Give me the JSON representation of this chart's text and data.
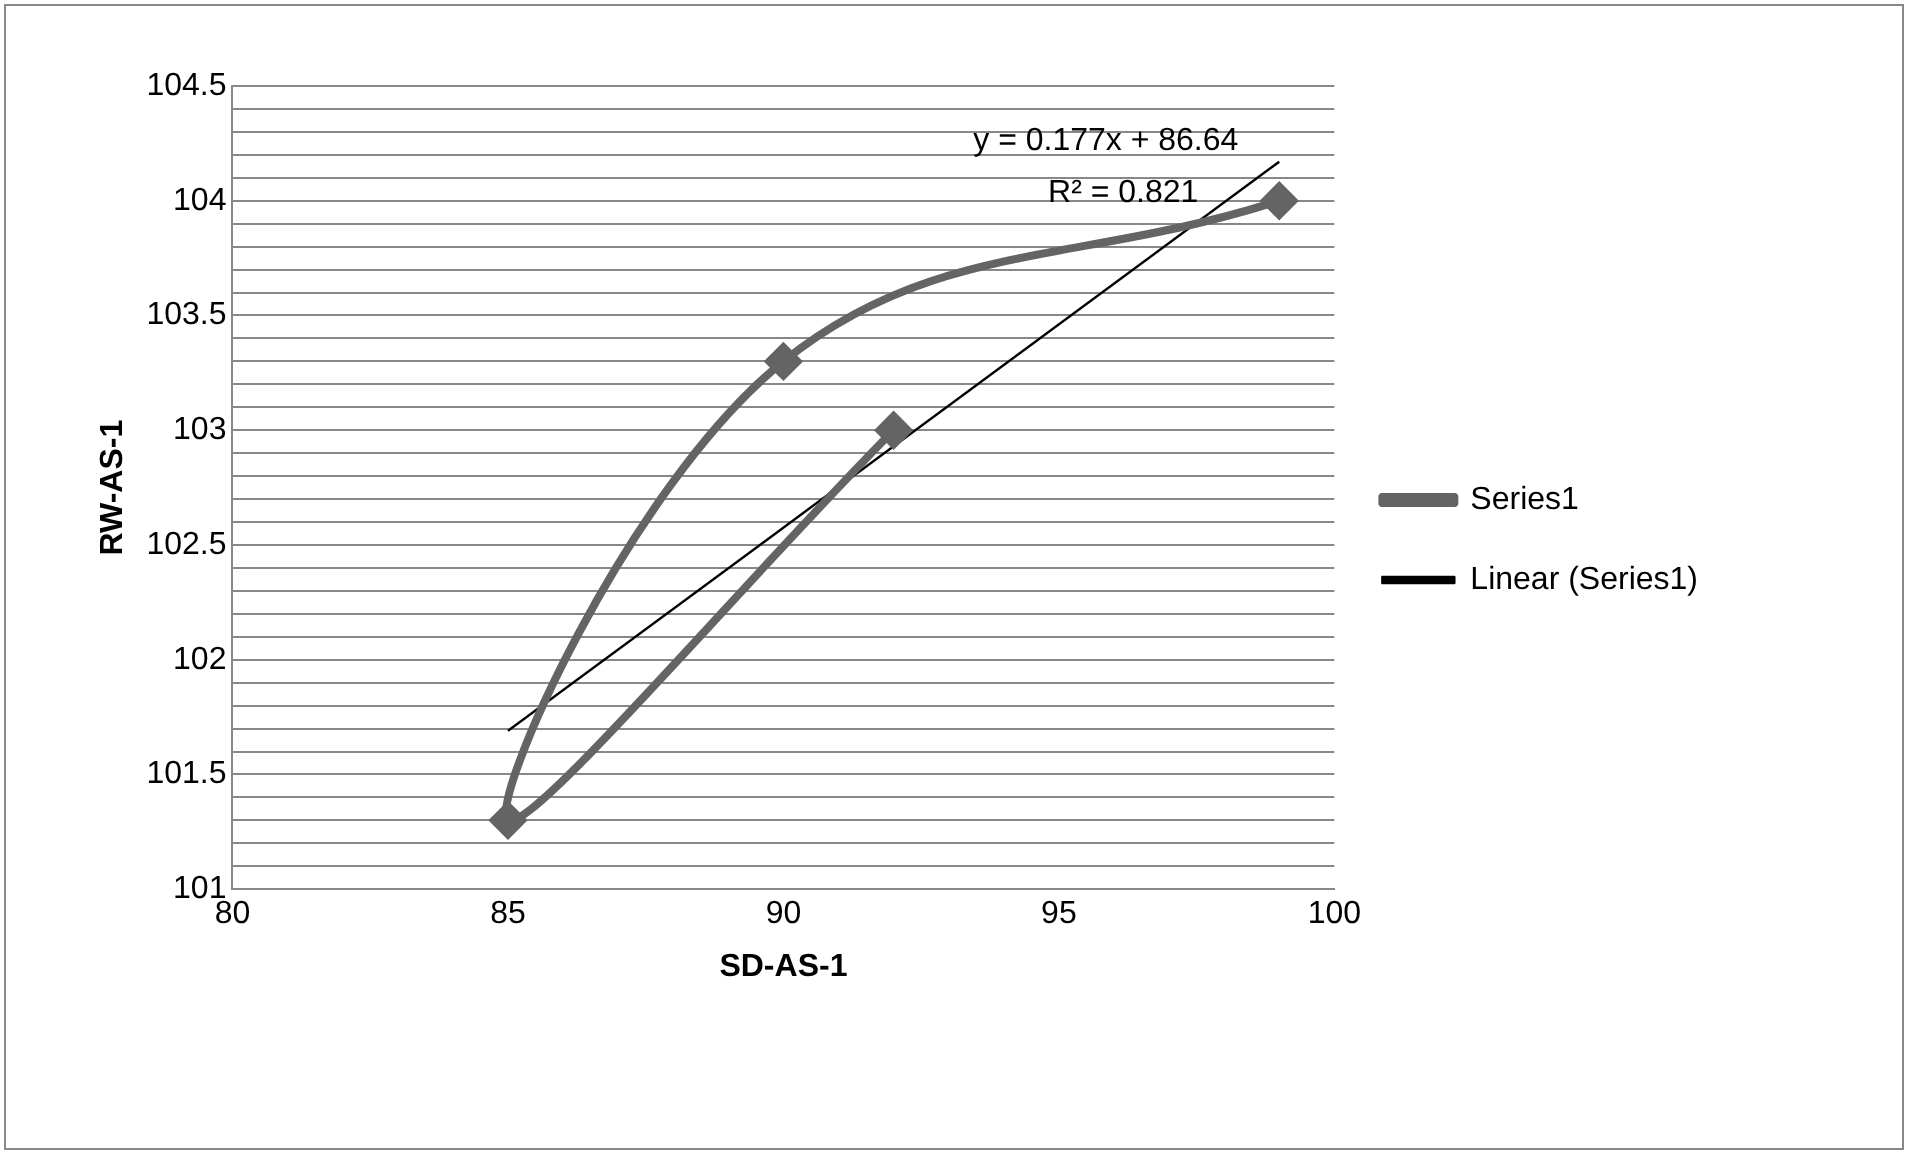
{
  "chart_data": {
    "type": "line",
    "xlabel": "SD-AS-1",
    "ylabel": "RW-AS-1",
    "xlim": [
      80,
      100
    ],
    "xticks": [
      80,
      85,
      90,
      95,
      100
    ],
    "ylim": [
      101,
      104.5
    ],
    "yticks": [
      101,
      {
        "value": 101.1,
        "label": null
      },
      {
        "value": 101.2,
        "label": null
      },
      {
        "value": 101.3,
        "label": null
      },
      {
        "value": 101.4,
        "label": null
      },
      101.5,
      {
        "value": 101.6,
        "label": null
      },
      {
        "value": 101.7,
        "label": null
      },
      {
        "value": 101.8,
        "label": null
      },
      {
        "value": 101.9,
        "label": null
      },
      102,
      {
        "value": 102.1,
        "label": null
      },
      {
        "value": 102.2,
        "label": null
      },
      {
        "value": 102.3,
        "label": null
      },
      {
        "value": 102.4,
        "label": null
      },
      102.5,
      {
        "value": 102.6,
        "label": null
      },
      {
        "value": 102.7,
        "label": null
      },
      {
        "value": 102.8,
        "label": null
      },
      {
        "value": 102.9,
        "label": null
      },
      103,
      {
        "value": 103.1,
        "label": null
      },
      {
        "value": 103.2,
        "label": null
      },
      {
        "value": 103.3,
        "label": null
      },
      {
        "value": 103.4,
        "label": null
      },
      103.5,
      {
        "value": 103.6,
        "label": null
      },
      {
        "value": 103.7,
        "label": null
      },
      {
        "value": 103.8,
        "label": null
      },
      {
        "value": 103.9,
        "label": null
      },
      104,
      {
        "value": 104.1,
        "label": null
      },
      {
        "value": 104.2,
        "label": null
      },
      {
        "value": 104.3,
        "label": null
      },
      {
        "value": 104.4,
        "label": null
      },
      104.5
    ],
    "grid": "y",
    "legend": "right",
    "series": [
      {
        "name": "Series1",
        "color": "#646464",
        "marker": "diamond",
        "x": [
          92,
          85,
          90,
          99
        ],
        "values": [
          103,
          101.3,
          103.3,
          104
        ]
      },
      {
        "name": "Linear (Series1)",
        "color": "#000000",
        "marker": "none",
        "x": [
          85,
          99
        ],
        "values": [
          101.69,
          104.17
        ]
      }
    ],
    "annotations": [
      "y = 0.177x + 86.64",
      "R² = 0.821"
    ]
  }
}
